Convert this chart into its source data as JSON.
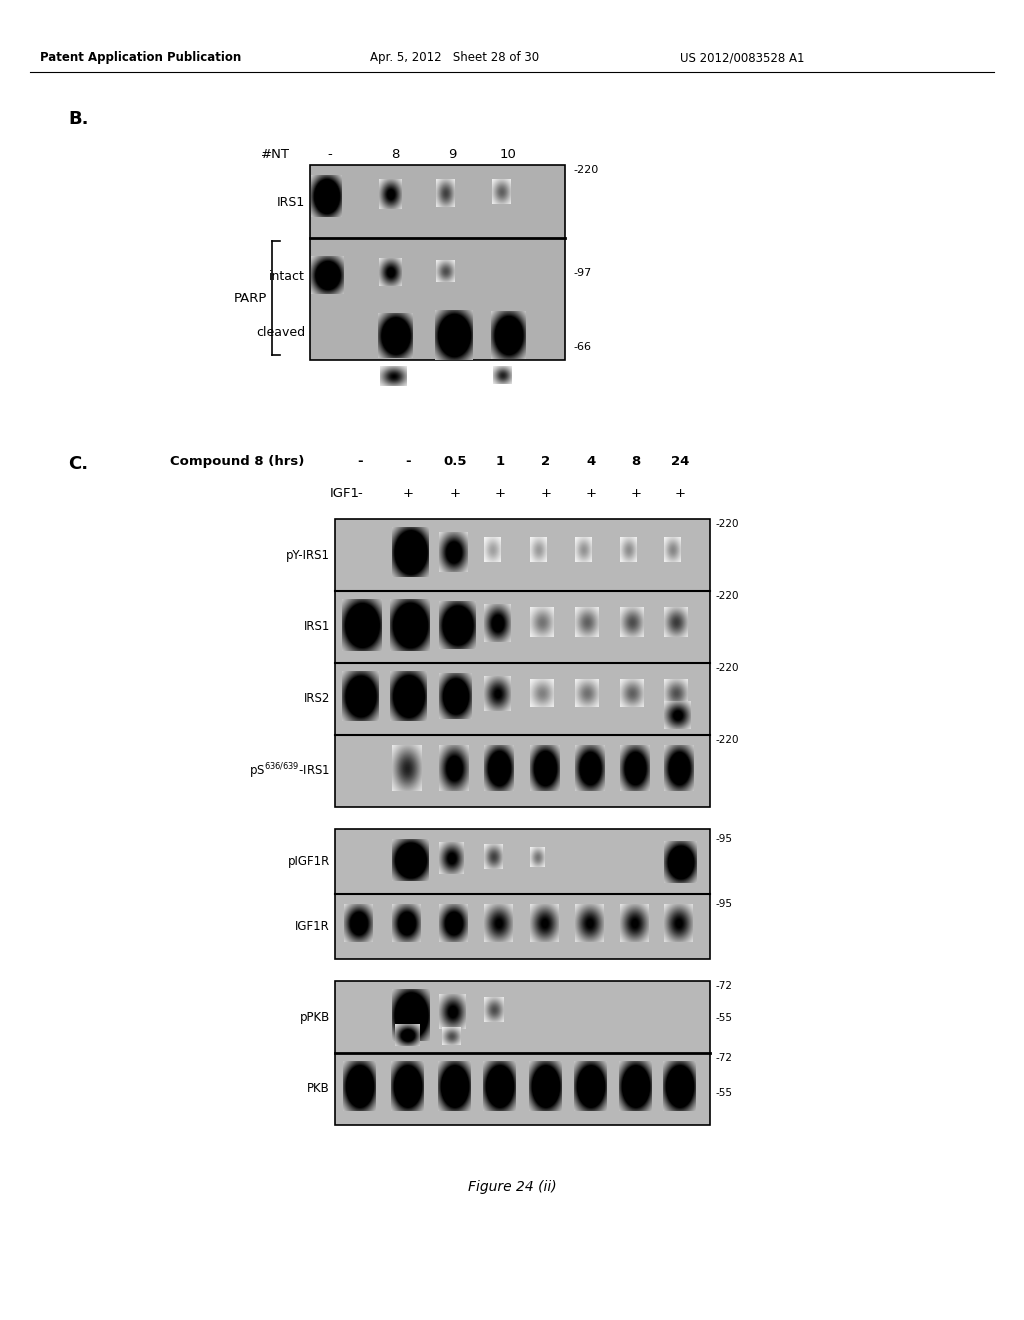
{
  "header_left": "Patent Application Publication",
  "header_mid": "Apr. 5, 2012   Sheet 28 of 30",
  "header_right": "US 2012/0083528 A1",
  "bg_color": "#ffffff",
  "text_color": "#000000",
  "panel_B": {
    "label": "B.",
    "col_labels": [
      "#NT",
      "-",
      "8",
      "9",
      "10"
    ],
    "mw_labels": [
      "-220",
      "-97",
      "-66"
    ],
    "row_labels": [
      "IRS1",
      "intact",
      "cleaved"
    ],
    "bracket_label": "PARP"
  },
  "panel_C": {
    "label": "C.",
    "compound_label": "Compound 8 (hrs)",
    "compound_vals": [
      "-",
      "-",
      "0.5",
      "1",
      "2",
      "4",
      "8",
      "24"
    ],
    "igf1_label": "IGF1",
    "igf1_vals": [
      "-",
      "+",
      "+",
      "+",
      "+",
      "+",
      "+",
      "+"
    ],
    "row_labels": [
      "pY-IRS1",
      "IRS1",
      "IRS2",
      "pS636/639-IRS1",
      "pIGF1R",
      "IGF1R",
      "pPKB",
      "PKB"
    ],
    "mw_g1": [
      "-220",
      "-220",
      "-220",
      "-220"
    ],
    "mw_g2": [
      "-95",
      "-95"
    ],
    "mw_g3_top": [
      "-72",
      "-55"
    ],
    "mw_g3_bot": [
      "-72",
      "-55"
    ]
  },
  "figure_caption": "Figure 24 (ii)"
}
